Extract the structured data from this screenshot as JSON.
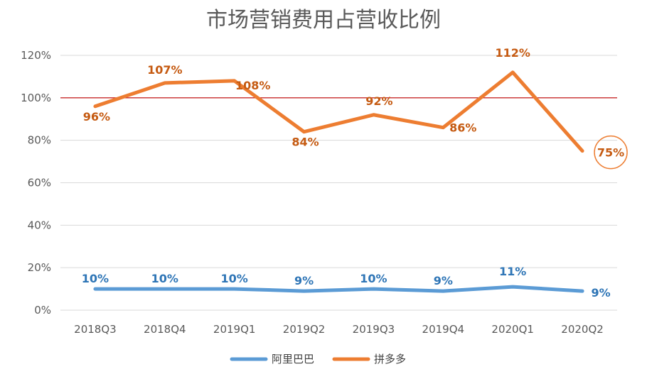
{
  "chart_data": {
    "type": "line",
    "title": "市场营销费用占营收比例",
    "categories": [
      "2018Q3",
      "2018Q4",
      "2019Q1",
      "2019Q2",
      "2019Q3",
      "2019Q4",
      "2020Q1",
      "2020Q2"
    ],
    "y_ticks": [
      "0%",
      "20%",
      "40%",
      "60%",
      "80%",
      "100%",
      "120%"
    ],
    "ylim": [
      0,
      120
    ],
    "grid": true,
    "legend_position": "bottom",
    "reference_line": {
      "value": 100,
      "color": "#c00000"
    },
    "series": [
      {
        "name": "阿里巴巴",
        "color": "#5b9bd5",
        "label_color": "#2e75b6",
        "values": [
          10,
          10,
          10,
          9,
          10,
          9,
          11,
          9
        ],
        "labels": [
          "10%",
          "10%",
          "10%",
          "9%",
          "10%",
          "9%",
          "11%",
          "9%"
        ]
      },
      {
        "name": "拼多多",
        "color": "#ed7d31",
        "label_color": "#c55a11",
        "values": [
          96,
          107,
          108,
          84,
          92,
          86,
          112,
          75
        ],
        "labels": [
          "96%",
          "107%",
          "108%",
          "84%",
          "92%",
          "86%",
          "112%",
          "75%"
        ],
        "highlighted_label_index": 7
      }
    ]
  }
}
